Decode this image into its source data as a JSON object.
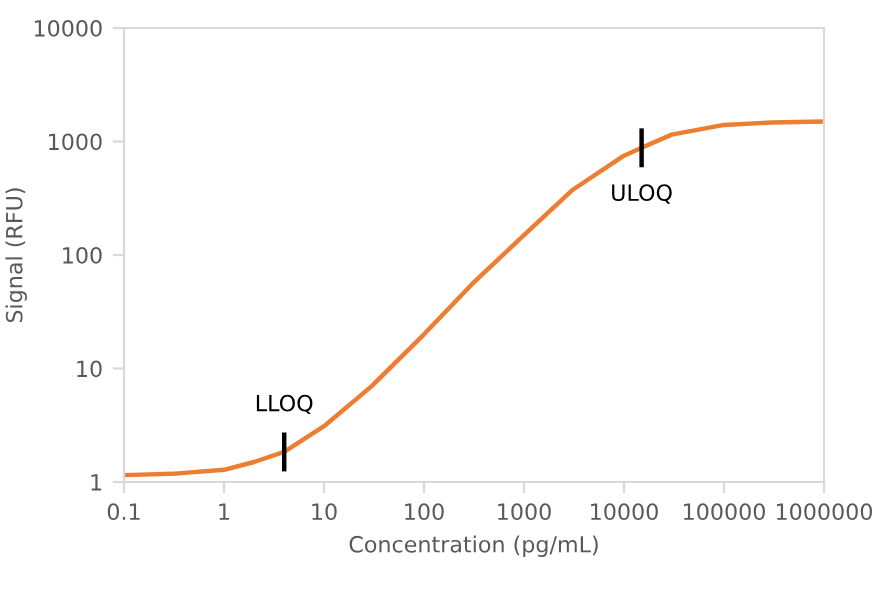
{
  "chart_data": {
    "type": "line",
    "xlabel": "Concentration (pg/mL)",
    "ylabel": "Signal (RFU)",
    "log": "xy",
    "x": [
      0.1,
      0.3,
      1,
      2,
      4,
      10,
      30,
      100,
      300,
      1000,
      3000,
      10000,
      15000,
      30000,
      100000,
      300000,
      1000000
    ],
    "series": [
      {
        "color": "#ed7d31",
        "values": [
          1.15,
          1.18,
          1.28,
          1.5,
          1.84,
          3.1,
          7,
          20,
          55,
          150,
          370,
          750,
          880,
          1150,
          1400,
          1470,
          1500
        ]
      }
    ],
    "xlim": [
      0.1,
      1000000
    ],
    "ylim": [
      1,
      10000
    ],
    "xticks": [
      0.1,
      1,
      10,
      100,
      1000,
      10000,
      100000,
      1000000
    ],
    "yticks": [
      1,
      10,
      100,
      1000,
      10000
    ],
    "grid": false,
    "legend": false,
    "marker": "none",
    "line_style": "solid",
    "annotations": [
      {
        "text": "LLOQ",
        "x": 4,
        "y": 1.84
      },
      {
        "text": "ULOQ",
        "x": 15000,
        "y": 880
      }
    ]
  }
}
